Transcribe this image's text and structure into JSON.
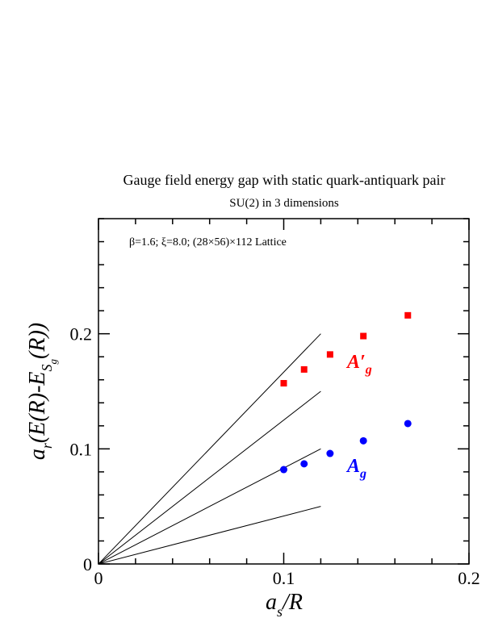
{
  "chart_data": {
    "type": "scatter",
    "title": "Gauge field energy gap with static quark-antiquark pair",
    "subtitle": "SU(2) in 3 dimensions",
    "annotation": "β=1.6;  ξ=8.0;  (28×56)×112 Lattice",
    "xlabel": {
      "main": "a",
      "sub": "s",
      "rest": "/R"
    },
    "ylabel": {
      "pre": "a",
      "sub": "r",
      "mid": "(E(R)-E",
      "sub2": "S",
      "sub3": "g",
      "post": "(R))"
    },
    "xlim": [
      0,
      0.2
    ],
    "ylim": [
      0,
      0.3
    ],
    "x_ticks": [
      {
        "value": 0,
        "label": "0"
      },
      {
        "value": 0.1,
        "label": "0.1"
      },
      {
        "value": 0.2,
        "label": "0.2"
      }
    ],
    "y_ticks": [
      {
        "value": 0,
        "label": "0"
      },
      {
        "value": 0.1,
        "label": "0.1"
      },
      {
        "value": 0.2,
        "label": "0.2"
      }
    ],
    "x_minor_step": 0.02,
    "y_minor_step": 0.02,
    "grid": false,
    "series": [
      {
        "name": "A′g",
        "label_main": "A′",
        "label_sub": "g",
        "marker": "square",
        "color": "#ff0000",
        "points": [
          {
            "x": 0.1,
            "y": 0.157
          },
          {
            "x": 0.111,
            "y": 0.169
          },
          {
            "x": 0.125,
            "y": 0.182
          },
          {
            "x": 0.143,
            "y": 0.198
          },
          {
            "x": 0.167,
            "y": 0.216
          }
        ]
      },
      {
        "name": "Ag",
        "label_main": "A",
        "label_sub": "g",
        "marker": "circle",
        "color": "#0000ff",
        "points": [
          {
            "x": 0.1,
            "y": 0.082
          },
          {
            "x": 0.111,
            "y": 0.087
          },
          {
            "x": 0.125,
            "y": 0.096
          },
          {
            "x": 0.143,
            "y": 0.107
          },
          {
            "x": 0.167,
            "y": 0.122
          }
        ]
      }
    ],
    "reference_lines": [
      {
        "x0": 0,
        "y0": 0,
        "x1": 0.12,
        "y1": 0.2
      },
      {
        "x0": 0,
        "y0": 0,
        "x1": 0.12,
        "y1": 0.15
      },
      {
        "x0": 0,
        "y0": 0,
        "x1": 0.12,
        "y1": 0.1
      },
      {
        "x0": 0,
        "y0": 0,
        "x1": 0.12,
        "y1": 0.05
      }
    ]
  }
}
